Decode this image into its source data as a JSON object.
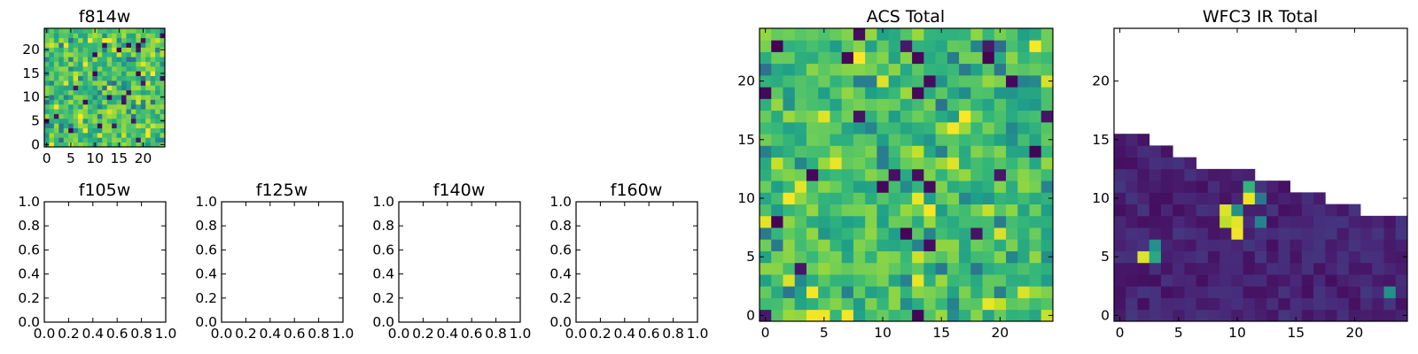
{
  "figure": {
    "background": "#ffffff"
  },
  "colormap": {
    "name": "viridis",
    "stops": [
      "#440154",
      "#482878",
      "#3e4989",
      "#31688e",
      "#26828e",
      "#1f9e89",
      "#35b779",
      "#6ece58",
      "#b5de2b",
      "#fde725"
    ]
  },
  "chart_data": [
    {
      "id": "f814w",
      "type": "heatmap",
      "title": "f814w",
      "rows": 25,
      "cols": 25,
      "xlim": [
        -0.5,
        24.5
      ],
      "ylim": [
        -0.5,
        24.5
      ],
      "xticks": [
        0,
        5,
        10,
        15,
        20
      ],
      "yticks": [
        0,
        5,
        10,
        15,
        20
      ],
      "xtick_labels": [
        "0",
        "5",
        "10",
        "15",
        "20"
      ],
      "ytick_labels": [
        "0",
        "5",
        "10",
        "15",
        "20"
      ],
      "value_range": [
        0,
        1
      ],
      "pattern": "noise",
      "seed": 814,
      "typical_value": 0.72
    },
    {
      "id": "f105w",
      "type": "empty",
      "title": "f105w",
      "xlim": [
        0,
        1
      ],
      "ylim": [
        0,
        1
      ],
      "xticks": [
        0,
        0.2,
        0.4,
        0.6,
        0.8,
        1.0
      ],
      "yticks": [
        0,
        0.2,
        0.4,
        0.6,
        0.8,
        1.0
      ],
      "xtick_labels": [
        "0.0",
        "0.2",
        "0.4",
        "0.6",
        "0.8",
        "1.0"
      ],
      "ytick_labels": [
        "0.0",
        "0.2",
        "0.4",
        "0.6",
        "0.8",
        "1.0"
      ]
    },
    {
      "id": "f125w",
      "type": "empty",
      "title": "f125w",
      "xlim": [
        0,
        1
      ],
      "ylim": [
        0,
        1
      ],
      "xticks": [
        0,
        0.2,
        0.4,
        0.6,
        0.8,
        1.0
      ],
      "yticks": [
        0,
        0.2,
        0.4,
        0.6,
        0.8,
        1.0
      ],
      "xtick_labels": [
        "0.0",
        "0.2",
        "0.4",
        "0.6",
        "0.8",
        "1.0"
      ],
      "ytick_labels": [
        "0.0",
        "0.2",
        "0.4",
        "0.6",
        "0.8",
        "1.0"
      ]
    },
    {
      "id": "f140w",
      "type": "empty",
      "title": "f140w",
      "xlim": [
        0,
        1
      ],
      "ylim": [
        0,
        1
      ],
      "xticks": [
        0,
        0.2,
        0.4,
        0.6,
        0.8,
        1.0
      ],
      "yticks": [
        0,
        0.2,
        0.4,
        0.6,
        0.8,
        1.0
      ],
      "xtick_labels": [
        "0.0",
        "0.2",
        "0.4",
        "0.6",
        "0.8",
        "1.0"
      ],
      "ytick_labels": [
        "0.0",
        "0.2",
        "0.4",
        "0.6",
        "0.8",
        "1.0"
      ]
    },
    {
      "id": "f160w",
      "type": "empty",
      "title": "f160w",
      "xlim": [
        0,
        1
      ],
      "ylim": [
        0,
        1
      ],
      "xticks": [
        0,
        0.2,
        0.4,
        0.6,
        0.8,
        1.0
      ],
      "yticks": [
        0,
        0.2,
        0.4,
        0.6,
        0.8,
        1.0
      ],
      "xtick_labels": [
        "0.0",
        "0.2",
        "0.4",
        "0.6",
        "0.8",
        "1.0"
      ],
      "ytick_labels": [
        "0.0",
        "0.2",
        "0.4",
        "0.6",
        "0.8",
        "1.0"
      ]
    },
    {
      "id": "acs_total",
      "type": "heatmap",
      "title": "ACS Total",
      "rows": 25,
      "cols": 25,
      "xlim": [
        -0.5,
        24.5
      ],
      "ylim": [
        -0.5,
        24.5
      ],
      "xticks": [
        0,
        5,
        10,
        15,
        20
      ],
      "yticks": [
        0,
        5,
        10,
        15,
        20
      ],
      "xtick_labels": [
        "0",
        "5",
        "10",
        "15",
        "20"
      ],
      "ytick_labels": [
        "0",
        "5",
        "10",
        "15",
        "20"
      ],
      "value_range": [
        0,
        1
      ],
      "pattern": "noise",
      "seed": 2024,
      "typical_value": 0.7
    },
    {
      "id": "wfc3_ir_total",
      "type": "heatmap",
      "title": "WFC3 IR Total",
      "rows": 25,
      "cols": 25,
      "xlim": [
        -0.5,
        24.5
      ],
      "ylim": [
        -0.5,
        24.5
      ],
      "xticks": [
        0,
        5,
        10,
        15,
        20
      ],
      "yticks": [
        0,
        5,
        10,
        15,
        20
      ],
      "xtick_labels": [
        "0",
        "5",
        "10",
        "15",
        "20"
      ],
      "ytick_labels": [
        "0",
        "5",
        "10",
        "15",
        "20"
      ],
      "value_range": [
        0,
        1
      ],
      "pattern": "staircase",
      "seed": 140,
      "typical_value": 0.1,
      "column_top_rows": [
        15,
        15,
        15,
        14,
        14,
        13,
        13,
        12,
        12,
        12,
        12,
        12,
        11,
        11,
        11,
        10,
        10,
        10,
        9,
        9,
        9,
        8,
        8,
        8,
        8
      ],
      "bright_cells": [
        {
          "col": 2,
          "row": 5,
          "value": 0.95
        },
        {
          "col": 3,
          "row": 5,
          "value": 0.6
        },
        {
          "col": 3,
          "row": 6,
          "value": 0.5
        },
        {
          "col": 9,
          "row": 8,
          "value": 0.9
        },
        {
          "col": 9,
          "row": 9,
          "value": 0.95
        },
        {
          "col": 10,
          "row": 7,
          "value": 0.98
        },
        {
          "col": 10,
          "row": 8,
          "value": 0.96
        },
        {
          "col": 10,
          "row": 9,
          "value": 0.5
        },
        {
          "col": 11,
          "row": 10,
          "value": 0.97
        },
        {
          "col": 11,
          "row": 11,
          "value": 0.65
        },
        {
          "col": 12,
          "row": 8,
          "value": 0.45
        },
        {
          "col": 12,
          "row": 10,
          "value": 0.4
        },
        {
          "col": 23,
          "row": 2,
          "value": 0.5
        }
      ]
    }
  ]
}
